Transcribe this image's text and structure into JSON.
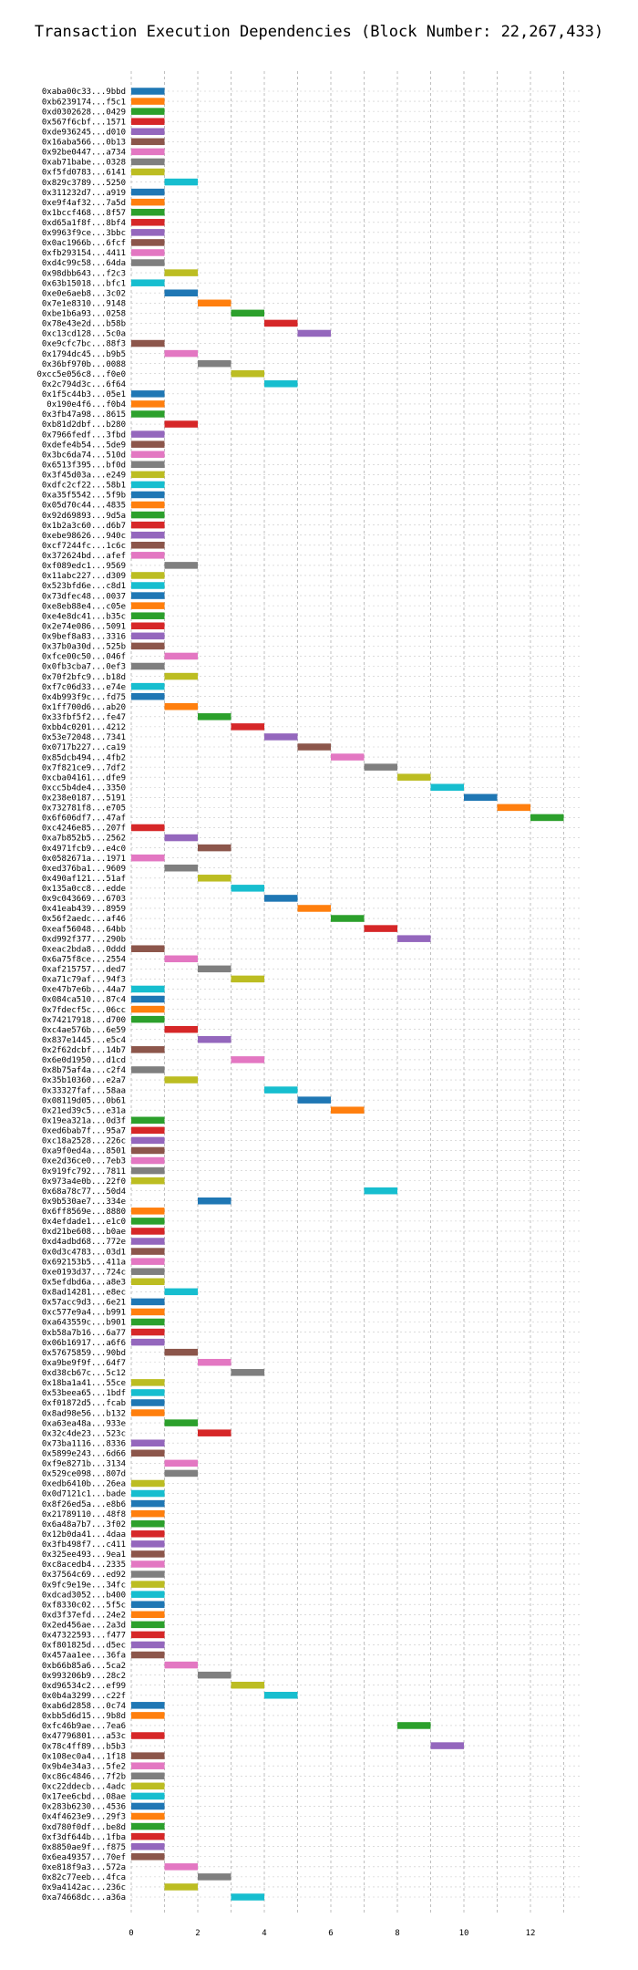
{
  "chart_data": {
    "type": "bar",
    "orientation": "horizontal",
    "title": "Transaction Execution Dependencies (Block Number: 22,267,433)",
    "xlabel": "",
    "ylabel": "",
    "xlim": [
      0,
      13.5
    ],
    "xticks": [
      0,
      2,
      4,
      6,
      8,
      10,
      12
    ],
    "grid": true,
    "bar_span": 1,
    "colors": [
      "#1f77b4",
      "#ff7f0e",
      "#2ca02c",
      "#d62728",
      "#9467bd",
      "#8c564b",
      "#e377c2",
      "#7f7f7f",
      "#bcbd22",
      "#17becf"
    ],
    "transactions": [
      {
        "tx": "0xaba00c33...9bbd",
        "start": 0
      },
      {
        "tx": "0xb6239174...f5c1",
        "start": 0
      },
      {
        "tx": "0xd0302628...0429",
        "start": 0
      },
      {
        "tx": "0x567f6cbf...1571",
        "start": 0
      },
      {
        "tx": "0xde936245...d010",
        "start": 0
      },
      {
        "tx": "0x16aba566...0b13",
        "start": 0
      },
      {
        "tx": "0x92be0447...a734",
        "start": 0
      },
      {
        "tx": "0xab71babe...0328",
        "start": 0
      },
      {
        "tx": "0xf5fd0783...6141",
        "start": 0
      },
      {
        "tx": "0x829c3789...5250",
        "start": 1
      },
      {
        "tx": "0x311232d7...a919",
        "start": 0
      },
      {
        "tx": "0xe9f4af32...7a5d",
        "start": 0
      },
      {
        "tx": "0x1bccf468...8f57",
        "start": 0
      },
      {
        "tx": "0xd65a1f8f...8bf4",
        "start": 0
      },
      {
        "tx": "0x9963f9ce...3bbc",
        "start": 0
      },
      {
        "tx": "0x0ac1966b...6fcf",
        "start": 0
      },
      {
        "tx": "0xfb293154...4411",
        "start": 0
      },
      {
        "tx": "0xd4c99c58...64da",
        "start": 0
      },
      {
        "tx": "0x98dbb643...f2c3",
        "start": 1
      },
      {
        "tx": "0x63b15018...bfc1",
        "start": 0
      },
      {
        "tx": "0xe0e6aeb8...3c02",
        "start": 1
      },
      {
        "tx": "0x7e1e8310...9148",
        "start": 2
      },
      {
        "tx": "0xbe1b6a93...0258",
        "start": 3
      },
      {
        "tx": "0x78e43e2d...b58b",
        "start": 4
      },
      {
        "tx": "0xc13cd128...5c0a",
        "start": 5
      },
      {
        "tx": "0xe9cfc7bc...88f3",
        "start": 0
      },
      {
        "tx": "0x1794dc45...b9b5",
        "start": 1
      },
      {
        "tx": "0x36bf970b...0088",
        "start": 2
      },
      {
        "tx": "0xcc5e056c8...f0e0",
        "start": 3
      },
      {
        "tx": "0x2c794d3c...6f64",
        "start": 4
      },
      {
        "tx": "0x1f5c44b3...05e1",
        "start": 0
      },
      {
        "tx": "0x190e4f6...f0b4",
        "start": 0
      },
      {
        "tx": "0x3fb47a98...8615",
        "start": 0
      },
      {
        "tx": "0xb81d2dbf...b280",
        "start": 1
      },
      {
        "tx": "0x7966fedf...3fbd",
        "start": 0
      },
      {
        "tx": "0xdefe4b54...5de9",
        "start": 0
      },
      {
        "tx": "0x3bc6da74...510d",
        "start": 0
      },
      {
        "tx": "0x6513f395...bf0d",
        "start": 0
      },
      {
        "tx": "0x3f45d03a...e249",
        "start": 0
      },
      {
        "tx": "0xdfc2cf22...58b1",
        "start": 0
      },
      {
        "tx": "0xa35f5542...5f9b",
        "start": 0
      },
      {
        "tx": "0x05d70c44...4835",
        "start": 0
      },
      {
        "tx": "0x92d69893...9d5a",
        "start": 0
      },
      {
        "tx": "0x1b2a3c60...d6b7",
        "start": 0
      },
      {
        "tx": "0xebe98626...940c",
        "start": 0
      },
      {
        "tx": "0xcf7244fc...1c6c",
        "start": 0
      },
      {
        "tx": "0x372624bd...afef",
        "start": 0
      },
      {
        "tx": "0xf089edc1...9569",
        "start": 1
      },
      {
        "tx": "0x11abc227...d309",
        "start": 0
      },
      {
        "tx": "0x523bfd6e...c8d1",
        "start": 0
      },
      {
        "tx": "0x73dfec48...0037",
        "start": 0
      },
      {
        "tx": "0xe8eb88e4...c05e",
        "start": 0
      },
      {
        "tx": "0xe4e8dc41...b35c",
        "start": 0
      },
      {
        "tx": "0x2e74e086...5091",
        "start": 0
      },
      {
        "tx": "0x9bef8a83...3316",
        "start": 0
      },
      {
        "tx": "0x37b0a30d...525b",
        "start": 0
      },
      {
        "tx": "0xfce00c50...046f",
        "start": 1
      },
      {
        "tx": "0x0fb3cba7...0ef3",
        "start": 0
      },
      {
        "tx": "0x70f2bfc9...b18d",
        "start": 1
      },
      {
        "tx": "0xf7c06d33...e74e",
        "start": 0
      },
      {
        "tx": "0x4b993f9c...fd75",
        "start": 0
      },
      {
        "tx": "0x1ff700d6...ab20",
        "start": 1
      },
      {
        "tx": "0x33fbf5f2...fe47",
        "start": 2
      },
      {
        "tx": "0xbb4c0201...4212",
        "start": 3
      },
      {
        "tx": "0x53e72048...7341",
        "start": 4
      },
      {
        "tx": "0x0717b227...ca19",
        "start": 5
      },
      {
        "tx": "0x85dcb494...4fb2",
        "start": 6
      },
      {
        "tx": "0x7f821ce9...7df2",
        "start": 7
      },
      {
        "tx": "0xcba04161...dfe9",
        "start": 8
      },
      {
        "tx": "0xcc5b4de4...3350",
        "start": 9
      },
      {
        "tx": "0x238e0187...5191",
        "start": 10
      },
      {
        "tx": "0x732781f8...e705",
        "start": 11
      },
      {
        "tx": "0x6f606df7...47af",
        "start": 12
      },
      {
        "tx": "0xc4246e85...207f",
        "start": 0
      },
      {
        "tx": "0xa7b852b5...2562",
        "start": 1
      },
      {
        "tx": "0x4971fcb9...e4c0",
        "start": 2
      },
      {
        "tx": "0x0582671a...1971",
        "start": 0
      },
      {
        "tx": "0xed376ba1...9609",
        "start": 1
      },
      {
        "tx": "0x490af121...51af",
        "start": 2
      },
      {
        "tx": "0x135a0cc8...edde",
        "start": 3
      },
      {
        "tx": "0x9c043669...6703",
        "start": 4
      },
      {
        "tx": "0x41eab439...8959",
        "start": 5
      },
      {
        "tx": "0x56f2aedc...af46",
        "start": 6
      },
      {
        "tx": "0xeaf56048...64bb",
        "start": 7
      },
      {
        "tx": "0xd992f377...290b",
        "start": 8
      },
      {
        "tx": "0xeac2bda8...0ddd",
        "start": 0
      },
      {
        "tx": "0x6a75f8ce...2554",
        "start": 1
      },
      {
        "tx": "0xaf215757...ded7",
        "start": 2
      },
      {
        "tx": "0xa71c79af...94f3",
        "start": 3
      },
      {
        "tx": "0xe47b7e6b...44a7",
        "start": 0
      },
      {
        "tx": "0x084ca510...87c4",
        "start": 0
      },
      {
        "tx": "0x7fdecf5c...06cc",
        "start": 0
      },
      {
        "tx": "0x74217918...d700",
        "start": 0
      },
      {
        "tx": "0xc4ae576b...6e59",
        "start": 1
      },
      {
        "tx": "0x837e1445...e5c4",
        "start": 2
      },
      {
        "tx": "0x2f62dcbf...14b7",
        "start": 0
      },
      {
        "tx": "0x6e0d1950...d1cd",
        "start": 3
      },
      {
        "tx": "0x8b75af4a...c2f4",
        "start": 0
      },
      {
        "tx": "0x35b10360...e2a7",
        "start": 1
      },
      {
        "tx": "0x33327faf...58aa",
        "start": 4
      },
      {
        "tx": "0x08119d05...0b61",
        "start": 5
      },
      {
        "tx": "0x21ed39c5...e31a",
        "start": 6
      },
      {
        "tx": "0x19ea321a...0d3f",
        "start": 0
      },
      {
        "tx": "0xed6bab7f...95a7",
        "start": 0
      },
      {
        "tx": "0xc18a2528...226c",
        "start": 0
      },
      {
        "tx": "0xa9f0ed4a...8501",
        "start": 0
      },
      {
        "tx": "0xe2d36ce0...7eb3",
        "start": 0
      },
      {
        "tx": "0x919fc792...7811",
        "start": 0
      },
      {
        "tx": "0x973a4e0b...22f0",
        "start": 0
      },
      {
        "tx": "0x68a78c77...50d4",
        "start": 7
      },
      {
        "tx": "0x9b530ae7...334e",
        "start": 2
      },
      {
        "tx": "0x6ff8569e...8880",
        "start": 0
      },
      {
        "tx": "0x4efdade1...e1c0",
        "start": 0
      },
      {
        "tx": "0xd21be608...b0ae",
        "start": 0
      },
      {
        "tx": "0xd4adbd68...772e",
        "start": 0
      },
      {
        "tx": "0x0d3c4783...03d1",
        "start": 0
      },
      {
        "tx": "0x692153b5...411a",
        "start": 0
      },
      {
        "tx": "0xe0193d37...724c",
        "start": 0
      },
      {
        "tx": "0x5efdbd6a...a8e3",
        "start": 0
      },
      {
        "tx": "0x8ad14281...e8ec",
        "start": 1
      },
      {
        "tx": "0x57acc9d3...6e21",
        "start": 0
      },
      {
        "tx": "0xc577e9a4...b991",
        "start": 0
      },
      {
        "tx": "0xa643559c...b901",
        "start": 0
      },
      {
        "tx": "0xb58a7b16...6a77",
        "start": 0
      },
      {
        "tx": "0x06b16917...a6f6",
        "start": 0
      },
      {
        "tx": "0x57675859...90bd",
        "start": 1
      },
      {
        "tx": "0xa9be9f9f...64f7",
        "start": 2
      },
      {
        "tx": "0xd38cb67c...5c12",
        "start": 3
      },
      {
        "tx": "0x18ba1a41...55ce",
        "start": 0
      },
      {
        "tx": "0x53beea65...1bdf",
        "start": 0
      },
      {
        "tx": "0xf01872d5...fcab",
        "start": 0
      },
      {
        "tx": "0x8ad98e56...b132",
        "start": 0
      },
      {
        "tx": "0xa63ea48a...933e",
        "start": 1
      },
      {
        "tx": "0x32c4de23...523c",
        "start": 2
      },
      {
        "tx": "0x73ba1116...8336",
        "start": 0
      },
      {
        "tx": "0x5899e243...6d66",
        "start": 0
      },
      {
        "tx": "0xf9e8271b...3134",
        "start": 1
      },
      {
        "tx": "0x529ce098...807d",
        "start": 1
      },
      {
        "tx": "0xedb6410b...26ea",
        "start": 0
      },
      {
        "tx": "0x0d7121c1...bade",
        "start": 0
      },
      {
        "tx": "0x8f26ed5a...e8b6",
        "start": 0
      },
      {
        "tx": "0x21789110...48f8",
        "start": 0
      },
      {
        "tx": "0x6a48a7b7...3f02",
        "start": 0
      },
      {
        "tx": "0x12b0da41...4daa",
        "start": 0
      },
      {
        "tx": "0x3fb498f7...c411",
        "start": 0
      },
      {
        "tx": "0x325ee493...9ea1",
        "start": 0
      },
      {
        "tx": "0xc8acedb4...2335",
        "start": 0
      },
      {
        "tx": "0x37564c69...ed92",
        "start": 0
      },
      {
        "tx": "0x9fc9e19e...34fc",
        "start": 0
      },
      {
        "tx": "0xdcad3052...b400",
        "start": 0
      },
      {
        "tx": "0xf8330c02...5f5c",
        "start": 0
      },
      {
        "tx": "0xd3f37efd...24e2",
        "start": 0
      },
      {
        "tx": "0x2ed456ae...2a3d",
        "start": 0
      },
      {
        "tx": "0x47322593...f477",
        "start": 0
      },
      {
        "tx": "0xf801825d...d5ec",
        "start": 0
      },
      {
        "tx": "0x457aa1ee...36fa",
        "start": 0
      },
      {
        "tx": "0xb66b85a6...5ca2",
        "start": 1
      },
      {
        "tx": "0x993206b9...28c2",
        "start": 2
      },
      {
        "tx": "0xd96534c2...ef99",
        "start": 3
      },
      {
        "tx": "0x0b4a3299...c22f",
        "start": 4
      },
      {
        "tx": "0xab6d2858...0c74",
        "start": 0
      },
      {
        "tx": "0xbb5d6d15...9b8d",
        "start": 0
      },
      {
        "tx": "0xfc46b9ae...7ea6",
        "start": 8
      },
      {
        "tx": "0x47796801...a53c",
        "start": 0
      },
      {
        "tx": "0x78c4ff89...b5b3",
        "start": 9
      },
      {
        "tx": "0x108ec0a4...1f18",
        "start": 0
      },
      {
        "tx": "0x9b4e34a3...5fe2",
        "start": 0
      },
      {
        "tx": "0xc86c4846...7f2b",
        "start": 0
      },
      {
        "tx": "0xc22ddecb...4adc",
        "start": 0
      },
      {
        "tx": "0x17ee6cbd...08ae",
        "start": 0
      },
      {
        "tx": "0x283b6230...4536",
        "start": 0
      },
      {
        "tx": "0x4f4623e9...29f3",
        "start": 0
      },
      {
        "tx": "0xd780f0df...be8d",
        "start": 0
      },
      {
        "tx": "0xf3df644b...1fba",
        "start": 0
      },
      {
        "tx": "0x8850ae9f...f875",
        "start": 0
      },
      {
        "tx": "0x6ea49357...70ef",
        "start": 0
      },
      {
        "tx": "0xe818f9a3...572a",
        "start": 1
      },
      {
        "tx": "0x82c77eeb...4fca",
        "start": 2
      },
      {
        "tx": "0x9a4142ac...236c",
        "start": 1
      },
      {
        "tx": "0xa74668dc...a36a",
        "start": 3
      }
    ]
  }
}
